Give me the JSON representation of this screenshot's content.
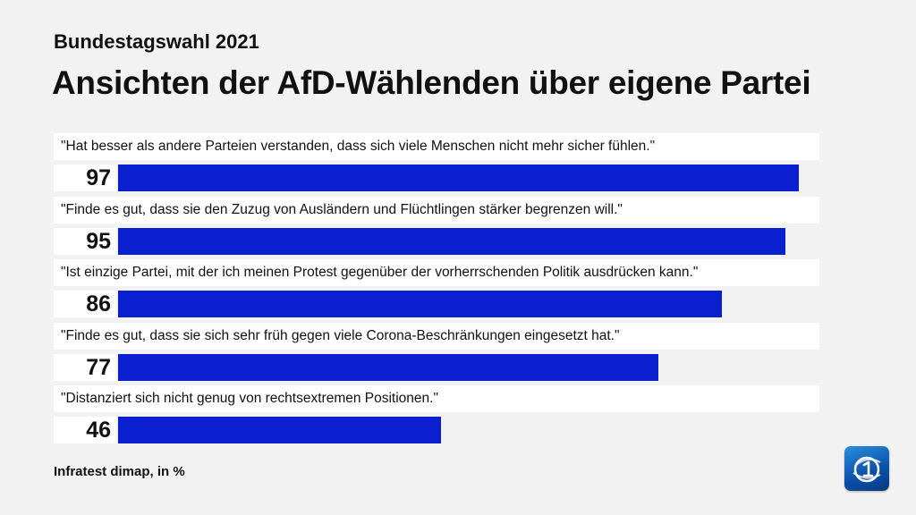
{
  "header": {
    "subtitle": "Bundestagswahl 2021",
    "title": "Ansichten der AfD-Wählenden über eigene Partei"
  },
  "chart_data": {
    "type": "bar",
    "orientation": "horizontal",
    "categories": [
      "\"Hat besser als andere Parteien verstanden, dass sich viele Menschen nicht mehr sicher fühlen.\"",
      "\"Finde es gut, dass sie den Zuzug von Ausländern und Flüchtlingen stärker begrenzen will.\"",
      "\"Ist einzige Partei, mit der ich meinen Protest gegenüber der vorherrschenden Politik ausdrücken kann.\"",
      "\"Finde es gut, dass sie sich sehr früh gegen viele Corona-Beschränkungen eingesetzt hat.\"",
      "\"Distanziert sich nicht genug von rechtsextremen Positionen.\""
    ],
    "values": [
      97,
      95,
      86,
      77,
      46
    ],
    "labels": [
      "97",
      "95",
      "86",
      "77",
      "46"
    ],
    "xlim": [
      0,
      100
    ],
    "bar_color": "#0a1fd0",
    "grid": false
  },
  "footer": {
    "source": "Infratest dimap, in %"
  },
  "logo": {
    "icon": "tagesschau-1-logo-icon",
    "colors": [
      "#2a8fe0",
      "#0a4fa8"
    ]
  }
}
